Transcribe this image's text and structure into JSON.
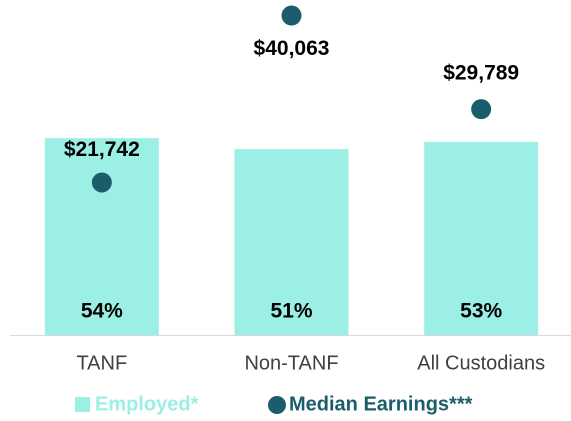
{
  "chart_data": {
    "type": "bar",
    "categories": [
      "TANF",
      "Non-TANF",
      "All Custodians"
    ],
    "series": [
      {
        "name": "Employed*",
        "color": "#9befe4",
        "values": [
          54,
          51,
          53
        ],
        "value_labels": [
          "54%",
          "51%",
          "53%"
        ]
      },
      {
        "name": "Median Earnings***",
        "color": "#1b5d6b",
        "type": "scatter",
        "axis": "y2",
        "values": [
          21742,
          40063,
          29789
        ],
        "value_labels": [
          "$21,742",
          "$40,063",
          "$29,789"
        ]
      }
    ],
    "ylim": [
      0,
      90
    ],
    "y2lim": [
      5000,
      41000
    ]
  }
}
